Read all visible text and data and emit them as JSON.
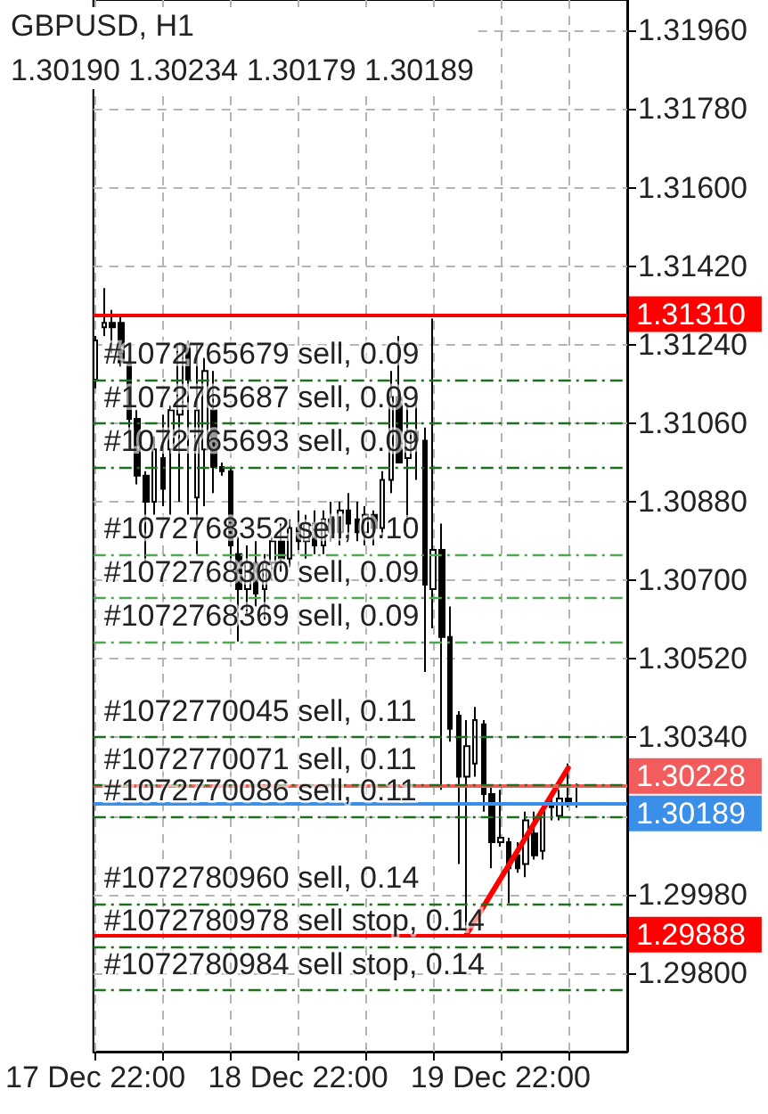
{
  "chart_data": {
    "type": "candlestick",
    "title": "GBPUSD, H1",
    "subtitle": "1.30190 1.30234 1.30179 1.30189",
    "color": "#000000",
    "x": [
      "--12-17T22:00",
      "--12-17T23:00",
      "--12-18T00:00",
      "--12-18T01:00",
      "--12-18T02:00",
      "--12-18T03:00",
      "--12-18T04:00",
      "--12-18T05:00",
      "--12-18T06:00",
      "--12-18T07:00",
      "--12-18T08:00",
      "--12-18T09:00",
      "--12-18T10:00",
      "--12-18T11:00",
      "--12-18T12:00",
      "--12-18T13:00",
      "--12-18T14:00",
      "--12-18T15:00",
      "--12-18T16:00",
      "--12-18T17:00",
      "--12-18T18:00",
      "--12-18T19:00",
      "--12-18T20:00",
      "--12-18T21:00",
      "--12-18T22:00",
      "--12-18T23:00",
      "--12-19T00:00",
      "--12-19T01:00",
      "--12-19T02:00",
      "--12-19T03:00",
      "--12-19T04:00",
      "--12-19T05:00",
      "--12-19T06:00",
      "--12-19T07:00",
      "--12-19T08:00",
      "--12-19T09:00",
      "--12-19T10:00",
      "--12-19T11:00",
      "--12-19T12:00",
      "--12-19T13:00",
      "--12-19T14:00",
      "--12-19T15:00",
      "--12-19T16:00",
      "--12-19T17:00",
      "--12-19T18:00",
      "--12-19T19:00",
      "--12-19T20:00",
      "--12-19T21:00",
      "--12-19T22:00",
      "--12-19T23:00",
      "--12-20T00:00",
      "--12-20T01:00",
      "--12-20T02:00",
      "--12-20T03:00",
      "--12-20T04:00",
      "--12-20T05:00",
      "--12-20T06:00",
      "--12-20T07:00"
    ],
    "ohlc": [
      [
        1.3116,
        1.3126,
        1.3114,
        1.3125
      ],
      [
        1.3128,
        1.3137,
        1.3126,
        1.3129
      ],
      [
        1.3129,
        1.3132,
        1.3122,
        1.3128
      ],
      [
        1.3129,
        1.3131,
        1.3119,
        1.312
      ],
      [
        1.312,
        1.3121,
        1.3104,
        1.3107
      ],
      [
        1.3107,
        1.3109,
        1.3092,
        1.3094
      ],
      [
        1.3094,
        1.3095,
        1.3074,
        1.3088
      ],
      [
        1.3088,
        1.3103,
        1.3085,
        1.31
      ],
      [
        1.3098,
        1.3108,
        1.3087,
        1.3091
      ],
      [
        1.31,
        1.311,
        1.3085,
        1.3109
      ],
      [
        1.3108,
        1.3124,
        1.3088,
        1.3124
      ],
      [
        1.3124,
        1.3125,
        1.3085,
        1.3116
      ],
      [
        1.3089,
        1.3124,
        1.3076,
        1.3109
      ],
      [
        1.31,
        1.3121,
        1.3087,
        1.3118
      ],
      [
        1.3109,
        1.3118,
        1.309,
        1.3096
      ],
      [
        1.3096,
        1.3097,
        1.3094,
        1.3095
      ],
      [
        1.3095,
        1.3096,
        1.3074,
        1.3078
      ],
      [
        1.3076,
        1.308,
        1.3056,
        1.3068
      ],
      [
        1.3068,
        1.3078,
        1.3062,
        1.3074
      ],
      [
        1.3074,
        1.3079,
        1.3064,
        1.3067
      ],
      [
        1.3068,
        1.3076,
        1.3061,
        1.3074
      ],
      [
        1.3074,
        1.308,
        1.307,
        1.3079
      ],
      [
        1.3079,
        1.3083,
        1.3072,
        1.3075
      ],
      [
        1.3075,
        1.3084,
        1.3073,
        1.3082
      ],
      [
        1.3082,
        1.3086,
        1.3077,
        1.3079
      ],
      [
        1.3079,
        1.3085,
        1.3075,
        1.3083
      ],
      [
        1.3083,
        1.3086,
        1.3076,
        1.3078
      ],
      [
        1.3078,
        1.3086,
        1.3076,
        1.3084
      ],
      [
        1.3084,
        1.3088,
        1.3079,
        1.3081
      ],
      [
        1.3081,
        1.3088,
        1.3078,
        1.3086
      ],
      [
        1.3086,
        1.309,
        1.308,
        1.3083
      ],
      [
        1.3084,
        1.3088,
        1.3079,
        1.3081
      ],
      [
        1.3081,
        1.3087,
        1.3078,
        1.3085
      ],
      [
        1.3085,
        1.3086,
        1.3078,
        1.3082
      ],
      [
        1.3082,
        1.3095,
        1.308,
        1.3093
      ],
      [
        1.3093,
        1.3118,
        1.309,
        1.3112
      ],
      [
        1.3112,
        1.3126,
        1.3097,
        1.3097
      ],
      [
        1.3098,
        1.311,
        1.3083,
        1.3104
      ],
      [
        1.3104,
        1.3113,
        1.3093,
        1.3102
      ],
      [
        1.3102,
        1.3105,
        1.3049,
        1.3069
      ],
      [
        1.3068,
        1.313,
        1.3059,
        1.3077
      ],
      [
        1.3077,
        1.3083,
        1.3022,
        1.3057
      ],
      [
        1.3057,
        1.3064,
        1.3033,
        1.3036
      ],
      [
        1.3039,
        1.304,
        1.3005,
        1.3025
      ],
      [
        1.3025,
        1.3038,
        1.2989,
        1.3032
      ],
      [
        1.3028,
        1.3041,
        1.3025,
        1.3038
      ],
      [
        1.3037,
        1.3038,
        1.3017,
        1.3021
      ],
      [
        1.3021,
        1.3023,
        1.3004,
        1.301
      ],
      [
        1.301,
        1.3022,
        1.3009,
        1.3011
      ],
      [
        1.301,
        1.3011,
        1.2996,
        1.3004
      ],
      [
        1.3007,
        1.301,
        1.3003,
        1.3004
      ],
      [
        1.3005,
        1.3017,
        1.3002,
        1.3015
      ],
      [
        1.3012,
        1.3017,
        1.3006,
        1.3007
      ],
      [
        1.3008,
        1.3018,
        1.3006,
        1.3017
      ],
      [
        1.3019,
        1.3021,
        1.3015,
        1.3018
      ],
      [
        1.3016,
        1.3022,
        1.3015,
        1.302
      ],
      [
        1.302,
        1.3028,
        1.3018,
        1.3019
      ],
      [
        1.3019,
        1.30234,
        1.30179,
        1.30189
      ]
    ],
    "series": [
      {
        "type": "line",
        "color": "#ff0000",
        "x": [
          "--12-19T18:00",
          "--12-20T06:00"
        ],
        "values": [
          1.2989,
          1.3027
        ]
      }
    ],
    "xlim": [
      "--12-17T21:45",
      "--12-20T13:00"
    ],
    "xticks": [
      {
        "value": "--12-17T22:00",
        "label": "17 Dec 22:00"
      },
      {
        "value": "--12-18T06:00",
        "label": null
      },
      {
        "value": "--12-18T14:00",
        "label": null
      },
      {
        "value": "--12-18T22:00",
        "label": "18 Dec 22:00"
      },
      {
        "value": "--12-19T06:00",
        "label": null
      },
      {
        "value": "--12-19T14:00",
        "label": null
      },
      {
        "value": "--12-19T22:00",
        "label": "19 Dec 22:00"
      },
      {
        "value": "--12-20T06:00",
        "label": null
      }
    ],
    "ylim": [
      1.2962,
      1.3203
    ],
    "yticks": [
      {
        "value": 1.298,
        "label": "1.29800"
      },
      {
        "value": 1.2998,
        "label": "1.29980"
      },
      {
        "value": 1.3016,
        "label": null
      },
      {
        "value": 1.3034,
        "label": "1.30340"
      },
      {
        "value": 1.3052,
        "label": "1.30520"
      },
      {
        "value": 1.307,
        "label": "1.30700"
      },
      {
        "value": 1.3088,
        "label": "1.30880"
      },
      {
        "value": 1.3106,
        "label": "1.31060"
      },
      {
        "value": 1.3124,
        "label": "1.31240"
      },
      {
        "value": 1.3142,
        "label": "1.31420"
      },
      {
        "value": 1.316,
        "label": "1.31600"
      },
      {
        "value": 1.3178,
        "label": "1.31780"
      },
      {
        "value": 1.3196,
        "label": "1.31960"
      }
    ],
    "grid": true,
    "ref_lines": [
      {
        "axis": "y",
        "value": 1.3131,
        "label": "1.31310",
        "color": "#ff0000",
        "line_style": "solid"
      },
      {
        "axis": "y",
        "value": 1.30228,
        "label": "1.30228",
        "color": "#f25c5c",
        "line_style": "solid"
      },
      {
        "axis": "y",
        "value": 1.30189,
        "label": "1.30189",
        "color": "#3b8fe8",
        "line_style": "solid"
      },
      {
        "axis": "y",
        "value": 1.29888,
        "label": "1.29888",
        "color": "#ff0000",
        "line_style": "solid"
      },
      {
        "axis": "y",
        "value": 1.3116,
        "label": "#1072765679 sell, 0.09",
        "color": "#1f6f1f",
        "line_style": "dashed"
      },
      {
        "axis": "y",
        "value": 1.3106,
        "label": "#1072765687 sell, 0.09",
        "color": "#1f6f1f",
        "line_style": "dashed"
      },
      {
        "axis": "y",
        "value": 1.3096,
        "label": "#1072765693 sell, 0.09",
        "color": "#1f6f1f",
        "line_style": "dashed"
      },
      {
        "axis": "y",
        "value": 1.3076,
        "label": "#1072768352 sell, 0.10",
        "color": "#4fa84f",
        "line_style": "dashed"
      },
      {
        "axis": "y",
        "value": 1.3066,
        "label": "#1072768360 sell, 0.09",
        "color": "#4fa84f",
        "line_style": "dashed"
      },
      {
        "axis": "y",
        "value": 1.3056,
        "label": "#1072768369 sell, 0.09",
        "color": "#4fa84f",
        "line_style": "dashed"
      },
      {
        "axis": "y",
        "value": 1.3034,
        "label": "#1072770045 sell, 0.11",
        "color": "#1f6f1f",
        "line_style": "dashed"
      },
      {
        "axis": "y",
        "value": 1.3023,
        "label": "#1072770071 sell, 0.11",
        "color": "#1f6f1f",
        "line_style": "dashed"
      },
      {
        "axis": "y",
        "value": 1.3016,
        "label": "#1072770086 sell, 0.11",
        "color": "#1f6f1f",
        "line_style": "dashed"
      },
      {
        "axis": "y",
        "value": 1.2996,
        "label": "#1072780960 sell, 0.14",
        "color": "#1f6f1f",
        "line_style": "dashed"
      },
      {
        "axis": "y",
        "value": 1.2986,
        "label": "#1072780978 sell stop, 0.14",
        "color": "#1f6f1f",
        "line_style": "dashed"
      },
      {
        "axis": "y",
        "value": 1.2976,
        "label": "#1072780984 sell stop, 0.14",
        "color": "#1f6f1f",
        "line_style": "dashed"
      }
    ]
  }
}
